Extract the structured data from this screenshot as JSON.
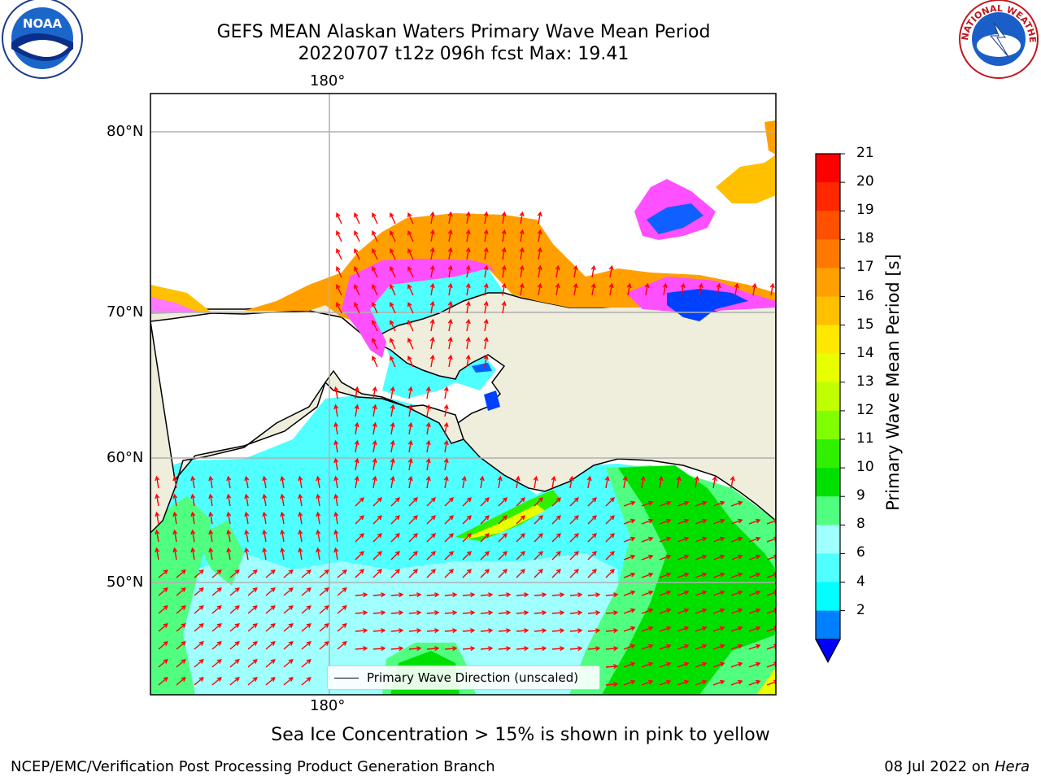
{
  "title": {
    "line1": "GEFS MEAN Alaskan Waters Primary Wave Mean Period",
    "line2": "20220707 t12z 096h fcst   Max: 19.41"
  },
  "map": {
    "lon_label_top": "180°",
    "lon_label_bottom": "180°",
    "lat_labels": [
      "80°N",
      "70°N",
      "60°N",
      "50°N"
    ]
  },
  "legend": {
    "label": "Primary Wave Direction (unscaled)"
  },
  "colorbar": {
    "title": "Primary Wave Mean Period [s]",
    "ticks": [
      "21",
      "20",
      "19",
      "18",
      "17",
      "16",
      "15",
      "14",
      "13",
      "12",
      "11",
      "10",
      "9",
      "8",
      "6",
      "4",
      "2"
    ],
    "colors": [
      "#ff0000",
      "#ff2800",
      "#ff5000",
      "#ff7800",
      "#ffa000",
      "#ffc000",
      "#ffe800",
      "#e8ff00",
      "#c0ff00",
      "#80ff00",
      "#30f000",
      "#00e000",
      "#50ff80",
      "#a0ffff",
      "#50ffff",
      "#00ffff",
      "#007fff"
    ],
    "extend_color": "#0000ff"
  },
  "land_color": "#efeddc",
  "arrow_color": "#ff0000",
  "ice_note": "Sea Ice Concentration > 15% is shown in pink to yellow",
  "footer": {
    "credit": "NCEP/EMC/Verification Post Processing Product Generation Branch",
    "date": "08 Jul 2022 on ",
    "machine": "Hera"
  },
  "logos": {
    "left": "NOAA",
    "right": "NATIONAL WEATHER SERVICE"
  }
}
